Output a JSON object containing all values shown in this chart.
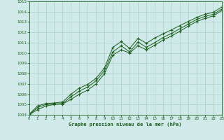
{
  "xlabel": "Graphe pression niveau de la mer (hPa)",
  "ylim": [
    1004,
    1015
  ],
  "xlim": [
    0,
    23
  ],
  "yticks": [
    1004,
    1005,
    1006,
    1007,
    1008,
    1009,
    1010,
    1011,
    1012,
    1013,
    1014,
    1015
  ],
  "xticks": [
    0,
    1,
    2,
    3,
    4,
    5,
    6,
    7,
    8,
    9,
    10,
    11,
    12,
    13,
    14,
    15,
    16,
    17,
    18,
    19,
    20,
    21,
    22,
    23
  ],
  "line_color": "#1a5c1a",
  "bg_color": "#d0eaea",
  "grid_color": "#b0cccc",
  "line1_x": [
    0,
    1,
    2,
    3,
    4,
    5,
    6,
    7,
    8,
    9,
    10,
    11,
    12,
    13,
    14,
    15,
    16,
    17,
    18,
    19,
    20,
    21,
    22,
    23
  ],
  "line1_y": [
    1004.05,
    1004.85,
    1005.1,
    1005.15,
    1005.25,
    1006.0,
    1006.6,
    1006.95,
    1007.55,
    1008.55,
    1010.55,
    1011.1,
    1010.45,
    1011.4,
    1010.95,
    1011.45,
    1011.85,
    1012.25,
    1012.65,
    1013.05,
    1013.45,
    1013.75,
    1013.95,
    1014.45
  ],
  "line2_x": [
    0,
    1,
    2,
    3,
    4,
    5,
    6,
    7,
    8,
    9,
    10,
    11,
    12,
    13,
    14,
    15,
    16,
    17,
    18,
    19,
    20,
    21,
    22,
    23
  ],
  "line2_y": [
    1004.0,
    1004.7,
    1005.0,
    1005.05,
    1005.1,
    1005.75,
    1006.3,
    1006.7,
    1007.3,
    1008.3,
    1010.1,
    1010.7,
    1010.1,
    1011.05,
    1010.55,
    1011.0,
    1011.5,
    1011.9,
    1012.35,
    1012.8,
    1013.25,
    1013.55,
    1013.75,
    1014.25
  ],
  "line3_x": [
    0,
    1,
    2,
    3,
    4,
    5,
    6,
    7,
    8,
    9,
    10,
    11,
    12,
    13,
    14,
    15,
    16,
    17,
    18,
    19,
    20,
    21,
    22,
    23
  ],
  "line3_y": [
    1004.0,
    1004.5,
    1004.85,
    1005.0,
    1005.05,
    1005.5,
    1006.0,
    1006.4,
    1007.0,
    1008.0,
    1009.8,
    1010.3,
    1010.0,
    1010.7,
    1010.3,
    1010.75,
    1011.25,
    1011.65,
    1012.1,
    1012.6,
    1013.05,
    1013.35,
    1013.6,
    1014.1
  ]
}
